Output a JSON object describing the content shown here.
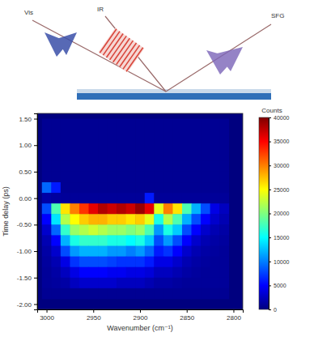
{
  "chart_data": {
    "type": "heatmap",
    "x_label": "Wavenumber (cm⁻¹)",
    "y_label": "Time delay (ps)",
    "annotations": [
      "Vis",
      "IR",
      "SFG"
    ],
    "xlim": [
      3010,
      2790
    ],
    "xticks": [
      3000,
      2950,
      2900,
      2850,
      2800
    ],
    "ylim": [
      -2.1,
      1.6
    ],
    "yticks": [
      {
        "value": 1.5,
        "label": "1.50"
      },
      {
        "value": 1.0,
        "label": "1.00"
      },
      {
        "value": 0.5,
        "label": "0.50"
      },
      {
        "value": 0.0,
        "label": "0.00"
      },
      {
        "value": -0.5,
        "label": "-0.50"
      },
      {
        "value": -1.0,
        "label": "-1.00"
      },
      {
        "value": -1.5,
        "label": "-1.50"
      },
      {
        "value": -2.0,
        "label": "-2.00"
      }
    ],
    "x": [
      3000,
      2990,
      2980,
      2970,
      2960,
      2950,
      2940,
      2930,
      2920,
      2910,
      2900,
      2890,
      2880,
      2870,
      2860,
      2850,
      2840,
      2830,
      2820,
      2810
    ],
    "y": [
      1.4,
      1.2,
      1.0,
      0.8,
      0.6,
      0.4,
      0.2,
      0.0,
      -0.2,
      -0.4,
      -0.6,
      -0.8,
      -1.0,
      -1.2,
      -1.4,
      -1.6,
      -1.8
    ],
    "cells": [
      [
        800,
        800,
        800,
        800,
        800,
        800,
        800,
        800,
        800,
        800,
        800,
        800,
        800,
        800,
        800,
        800,
        800,
        800,
        800,
        800
      ],
      [
        800,
        800,
        800,
        800,
        800,
        800,
        800,
        800,
        800,
        800,
        800,
        800,
        800,
        800,
        800,
        800,
        800,
        800,
        800,
        800
      ],
      [
        800,
        800,
        800,
        800,
        800,
        800,
        800,
        800,
        800,
        800,
        800,
        800,
        800,
        800,
        800,
        800,
        800,
        800,
        800,
        800
      ],
      [
        800,
        800,
        800,
        800,
        800,
        800,
        800,
        800,
        800,
        800,
        800,
        800,
        800,
        800,
        800,
        800,
        800,
        800,
        800,
        800
      ],
      [
        800,
        800,
        800,
        800,
        800,
        800,
        800,
        800,
        800,
        800,
        800,
        800,
        800,
        800,
        800,
        800,
        800,
        800,
        800,
        800
      ],
      [
        800,
        800,
        800,
        800,
        800,
        800,
        800,
        800,
        800,
        800,
        800,
        800,
        800,
        800,
        800,
        800,
        800,
        800,
        800,
        800
      ],
      [
        9000,
        6000,
        800,
        800,
        800,
        800,
        800,
        800,
        800,
        800,
        800,
        800,
        800,
        800,
        800,
        800,
        800,
        800,
        800,
        800
      ],
      [
        1500,
        1200,
        1000,
        1000,
        1000,
        1000,
        1000,
        1000,
        1000,
        1000,
        1000,
        6000,
        1000,
        1000,
        1000,
        1000,
        1000,
        1000,
        1000,
        1000
      ],
      [
        8000,
        18000,
        26000,
        30000,
        33000,
        36000,
        38000,
        37000,
        38000,
        37000,
        39000,
        36000,
        24000,
        30000,
        26000,
        18000,
        12000,
        8000,
        4000,
        2500
      ],
      [
        5000,
        14000,
        22000,
        25000,
        27000,
        28000,
        28000,
        27000,
        27000,
        26000,
        27000,
        24000,
        16000,
        22000,
        18000,
        12000,
        8000,
        5000,
        3000,
        2000
      ],
      [
        3000,
        9000,
        17000,
        21000,
        22000,
        23000,
        22000,
        21000,
        21000,
        20000,
        21000,
        18000,
        11000,
        16000,
        13000,
        8000,
        5000,
        3000,
        2000,
        1500
      ],
      [
        2000,
        5000,
        12000,
        16000,
        17000,
        17000,
        17000,
        16000,
        16000,
        15000,
        16000,
        13000,
        8000,
        11000,
        8000,
        5000,
        3000,
        2000,
        1500,
        1200
      ],
      [
        1500,
        3000,
        8000,
        11000,
        12000,
        12000,
        12000,
        11000,
        11000,
        10000,
        11000,
        9000,
        6000,
        7000,
        5000,
        3000,
        2000,
        1500,
        1200,
        1000
      ],
      [
        1200,
        2000,
        4000,
        7000,
        8000,
        8000,
        8000,
        7500,
        7000,
        7000,
        7000,
        6000,
        4000,
        4000,
        3000,
        2000,
        1500,
        1200,
        1000,
        1000
      ],
      [
        1000,
        1500,
        2500,
        4000,
        5000,
        5000,
        5000,
        4500,
        4500,
        4000,
        4000,
        3500,
        2500,
        2500,
        2000,
        1500,
        1200,
        1000,
        1000,
        1000
      ],
      [
        1000,
        1200,
        1500,
        2500,
        3000,
        3000,
        3000,
        3000,
        2500,
        2500,
        2500,
        2000,
        1500,
        1500,
        1200,
        1000,
        1000,
        1000,
        1000,
        1000
      ],
      [
        800,
        800,
        800,
        800,
        800,
        800,
        800,
        800,
        800,
        800,
        800,
        800,
        800,
        800,
        800,
        800,
        800,
        800,
        800,
        800
      ]
    ],
    "colorbar_label": "Counts",
    "colorbar_range": [
      0,
      40000
    ],
    "colorbar_ticks": [
      0,
      5000,
      10000,
      15000,
      20000,
      25000,
      30000,
      35000,
      40000
    ]
  }
}
